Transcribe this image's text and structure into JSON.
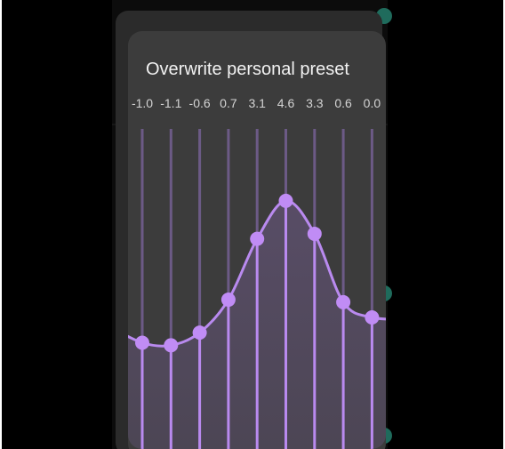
{
  "dialog": {
    "title": "Overwrite personal preset",
    "bands": [
      {
        "value": -1.0,
        "label": "-1.0"
      },
      {
        "value": -1.1,
        "label": "-1.1"
      },
      {
        "value": -0.6,
        "label": "-0.6"
      },
      {
        "value": 0.7,
        "label": "0.7"
      },
      {
        "value": 3.1,
        "label": "3.1"
      },
      {
        "value": 4.6,
        "label": "4.6"
      },
      {
        "value": 3.3,
        "label": "3.3"
      },
      {
        "value": 0.6,
        "label": "0.6"
      },
      {
        "value": 0.0,
        "label": "0.0"
      }
    ]
  }
}
